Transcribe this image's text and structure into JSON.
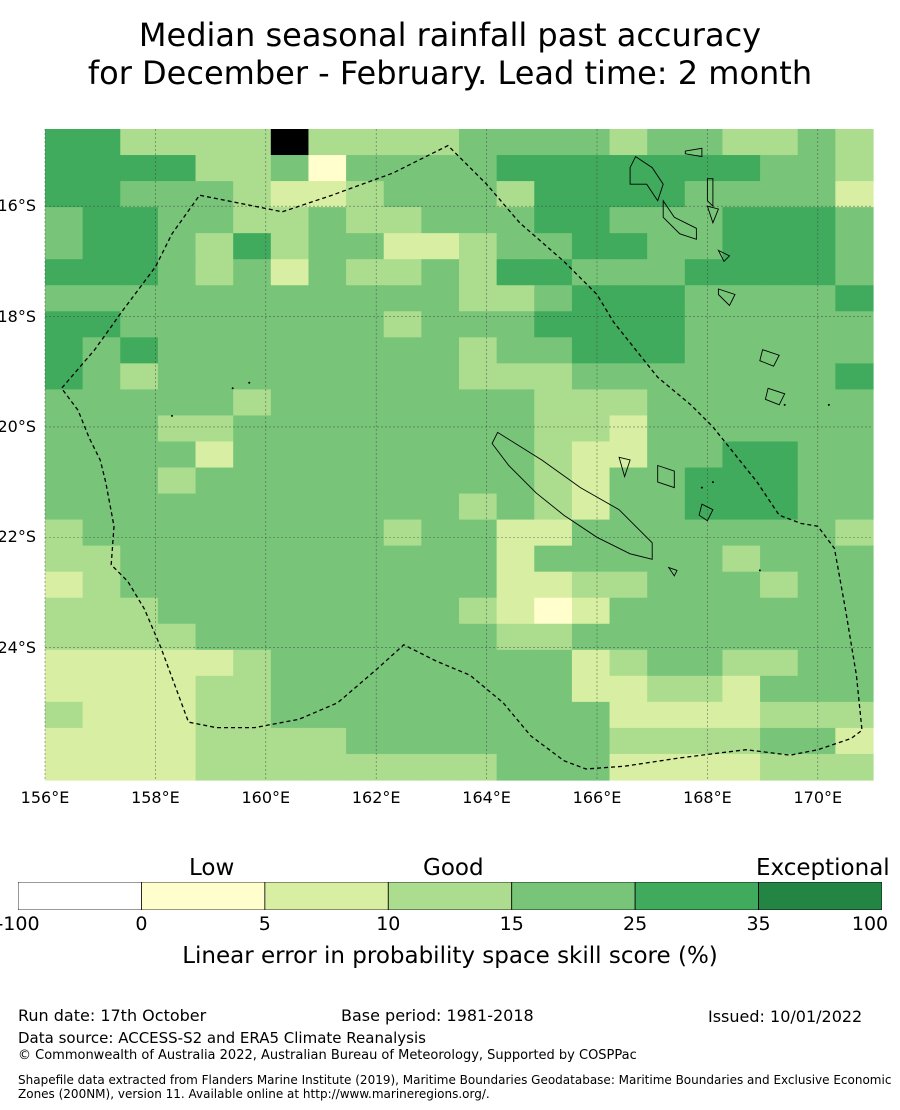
{
  "title": {
    "line1": "Median seasonal rainfall past accuracy",
    "line2": "for December - February. Lead time: 2 month"
  },
  "map": {
    "lon_range": [
      156,
      171
    ],
    "lat_range": [
      -26.4,
      -14.6
    ],
    "lat_ticks": [
      {
        "value": -16,
        "label": "16°S"
      },
      {
        "value": -18,
        "label": "18°S"
      },
      {
        "value": -20,
        "label": "20°S"
      },
      {
        "value": -22,
        "label": "22°S"
      },
      {
        "value": -24,
        "label": "24°S"
      }
    ],
    "lon_ticks": [
      {
        "value": 156,
        "label": "156°E"
      },
      {
        "value": 158,
        "label": "158°E"
      },
      {
        "value": 160,
        "label": "160°E"
      },
      {
        "value": 162,
        "label": "162°E"
      },
      {
        "value": 164,
        "label": "164°E"
      },
      {
        "value": 166,
        "label": "166°E"
      },
      {
        "value": 168,
        "label": "168°E"
      },
      {
        "value": 170,
        "label": "170°E"
      }
    ],
    "grid_lines": true,
    "category_colors": [
      "#ffffff",
      "#fffecc",
      "#d8efa3",
      "#acdd8e",
      "#78c57a",
      "#41ab5d",
      "#238443"
    ],
    "skill_grid": [
      "5533338333344443443343",
      "5555334144445555555443",
      "5544432234443555544442",
      "4554433433444554445554",
      "4554353442234455445554",
      "5554342433435544455554",
      "4444444444433455544445",
      "5544444443444555544444",
      "5454444444434455544444",
      "5434444444433344444445",
      "4444434444444333444444",
      "4443344444444332444444",
      "4444244444444322445544",
      "4443444444444324455544",
      "4444444444434324455544",
      "3444444443442244444443",
      "3344444444442444443444",
      "2344444444442233444344",
      "3334444444432124444444",
      "3333444444443344444444",
      "2222234444444423443344",
      "2222334444444422332444",
      "3222334444444442222333",
      "2222333344444443333442",
      "2222333333334442222333"
    ],
    "boundary_path": [
      [
        160.3,
        -16.1
      ],
      [
        161.2,
        -15.8
      ],
      [
        162.3,
        -15.4
      ],
      [
        163.3,
        -14.9
      ],
      [
        164.0,
        -15.6
      ],
      [
        164.6,
        -16.3
      ],
      [
        165.4,
        -17.0
      ],
      [
        166.0,
        -17.6
      ],
      [
        166.3,
        -18.1
      ],
      [
        166.7,
        -18.6
      ],
      [
        167.1,
        -19.1
      ],
      [
        167.7,
        -19.6
      ],
      [
        168.1,
        -20.0
      ],
      [
        168.5,
        -20.5
      ],
      [
        168.9,
        -21.0
      ],
      [
        169.3,
        -21.6
      ],
      [
        169.7,
        -21.75
      ],
      [
        170.0,
        -21.8
      ],
      [
        170.3,
        -22.2
      ],
      [
        170.5,
        -23.3
      ],
      [
        170.7,
        -24.5
      ],
      [
        170.8,
        -25.5
      ],
      [
        170.6,
        -25.65
      ],
      [
        170.0,
        -25.85
      ],
      [
        169.5,
        -25.95
      ],
      [
        168.7,
        -25.85
      ],
      [
        167.5,
        -26.0
      ],
      [
        166.5,
        -26.15
      ],
      [
        165.8,
        -26.2
      ],
      [
        165.4,
        -26.05
      ],
      [
        164.8,
        -25.6
      ],
      [
        164.3,
        -25.0
      ],
      [
        163.7,
        -24.5
      ],
      [
        163.1,
        -24.25
      ],
      [
        162.5,
        -23.95
      ],
      [
        162.0,
        -24.4
      ],
      [
        161.3,
        -25.0
      ],
      [
        160.6,
        -25.3
      ],
      [
        159.8,
        -25.45
      ],
      [
        159.1,
        -25.45
      ],
      [
        158.6,
        -25.35
      ],
      [
        158.1,
        -24.0
      ],
      [
        157.8,
        -23.3
      ],
      [
        157.5,
        -22.8
      ],
      [
        157.2,
        -22.5
      ],
      [
        157.25,
        -21.8
      ],
      [
        157.1,
        -21.0
      ],
      [
        157.0,
        -20.6
      ],
      [
        156.8,
        -20.2
      ],
      [
        156.6,
        -19.7
      ],
      [
        156.3,
        -19.3
      ],
      [
        156.9,
        -18.6
      ],
      [
        157.4,
        -17.9
      ],
      [
        158.0,
        -17.1
      ],
      [
        158.3,
        -16.5
      ],
      [
        158.8,
        -15.8
      ],
      [
        160.3,
        -16.1
      ]
    ],
    "islands": [
      [
        [
          164.2,
          -20.1
        ],
        [
          165.0,
          -20.6
        ],
        [
          165.7,
          -21.1
        ],
        [
          166.4,
          -21.5
        ],
        [
          167.0,
          -22.1
        ],
        [
          167.0,
          -22.4
        ],
        [
          166.6,
          -22.3
        ],
        [
          166.0,
          -22.0
        ],
        [
          165.4,
          -21.6
        ],
        [
          164.9,
          -21.2
        ],
        [
          164.4,
          -20.7
        ],
        [
          164.1,
          -20.3
        ],
        [
          164.2,
          -20.1
        ]
      ],
      [
        [
          166.7,
          -15.1
        ],
        [
          167.0,
          -15.3
        ],
        [
          167.2,
          -15.6
        ],
        [
          167.1,
          -15.9
        ],
        [
          166.9,
          -15.6
        ],
        [
          166.6,
          -15.6
        ],
        [
          166.6,
          -15.3
        ],
        [
          166.7,
          -15.1
        ]
      ],
      [
        [
          167.2,
          -15.9
        ],
        [
          167.4,
          -16.2
        ],
        [
          167.8,
          -16.4
        ],
        [
          167.8,
          -16.6
        ],
        [
          167.5,
          -16.5
        ],
        [
          167.2,
          -16.2
        ],
        [
          167.2,
          -15.9
        ]
      ],
      [
        [
          168.2,
          -16.8
        ],
        [
          168.4,
          -16.9
        ],
        [
          168.3,
          -17.0
        ],
        [
          168.2,
          -16.8
        ]
      ],
      [
        [
          168.2,
          -17.5
        ],
        [
          168.5,
          -17.6
        ],
        [
          168.4,
          -17.8
        ],
        [
          168.2,
          -17.6
        ],
        [
          168.2,
          -17.5
        ]
      ],
      [
        [
          169.0,
          -18.6
        ],
        [
          169.3,
          -18.7
        ],
        [
          169.2,
          -18.9
        ],
        [
          168.95,
          -18.8
        ],
        [
          169.0,
          -18.6
        ]
      ],
      [
        [
          169.1,
          -19.3
        ],
        [
          169.4,
          -19.4
        ],
        [
          169.3,
          -19.6
        ],
        [
          169.05,
          -19.5
        ],
        [
          169.1,
          -19.3
        ]
      ],
      [
        [
          167.1,
          -20.7
        ],
        [
          167.4,
          -20.8
        ],
        [
          167.4,
          -21.1
        ],
        [
          167.1,
          -21.0
        ],
        [
          167.1,
          -20.7
        ]
      ],
      [
        [
          167.9,
          -21.4
        ],
        [
          168.1,
          -21.5
        ],
        [
          168.0,
          -21.7
        ],
        [
          167.85,
          -21.6
        ],
        [
          167.9,
          -21.4
        ]
      ],
      [
        [
          168.0,
          -15.5
        ],
        [
          168.1,
          -15.5
        ],
        [
          168.1,
          -16.0
        ],
        [
          168.0,
          -15.9
        ],
        [
          168.0,
          -15.5
        ]
      ],
      [
        [
          167.6,
          -15.0
        ],
        [
          167.9,
          -14.95
        ],
        [
          167.9,
          -15.1
        ],
        [
          167.6,
          -15.05
        ],
        [
          167.6,
          -15.0
        ]
      ],
      [
        [
          166.4,
          -20.55
        ],
        [
          166.6,
          -20.6
        ],
        [
          166.5,
          -20.9
        ],
        [
          166.4,
          -20.55
        ]
      ],
      [
        [
          168.0,
          -16.0
        ],
        [
          168.2,
          -16.05
        ],
        [
          168.1,
          -16.3
        ],
        [
          168.0,
          -16.0
        ]
      ],
      [
        [
          167.3,
          -22.55
        ],
        [
          167.45,
          -22.6
        ],
        [
          167.4,
          -22.7
        ],
        [
          167.3,
          -22.55
        ]
      ]
    ],
    "dots": [
      [
        159.7,
        -19.2
      ],
      [
        159.4,
        -19.3
      ],
      [
        158.3,
        -19.8
      ],
      [
        169.4,
        -19.6
      ],
      [
        170.2,
        -19.6
      ],
      [
        168.95,
        -22.6
      ],
      [
        168.1,
        -21.0
      ],
      [
        167.9,
        -21.1
      ]
    ]
  },
  "colorbar": {
    "headings": {
      "low": "Low",
      "good": "Good",
      "exceptional": "Exceptional"
    },
    "tick_labels": [
      "-100",
      "0",
      "5",
      "10",
      "15",
      "25",
      "35",
      "100"
    ],
    "label": "Linear error in probability space skill score (%)"
  },
  "footer": {
    "run_date": "Run date: 17th October",
    "base_period": "Base period: 1981-2018",
    "issued": "Issued: 10/01/2022",
    "data_source": "Data source: ACCESS-S2 and ERA5 Climate Reanalysis",
    "copyright": "© Commonwealth of Australia 2022, Australian Bureau of Meteorology, Supported by COSPPac",
    "shapefile": "Shapefile data extracted from Flanders Marine Institute (2019), Maritime Boundaries Geodatabase: Maritime Boundaries and Exclusive Economic Zones (200NM), version 11. Available online at http://www.marineregions.org/."
  }
}
